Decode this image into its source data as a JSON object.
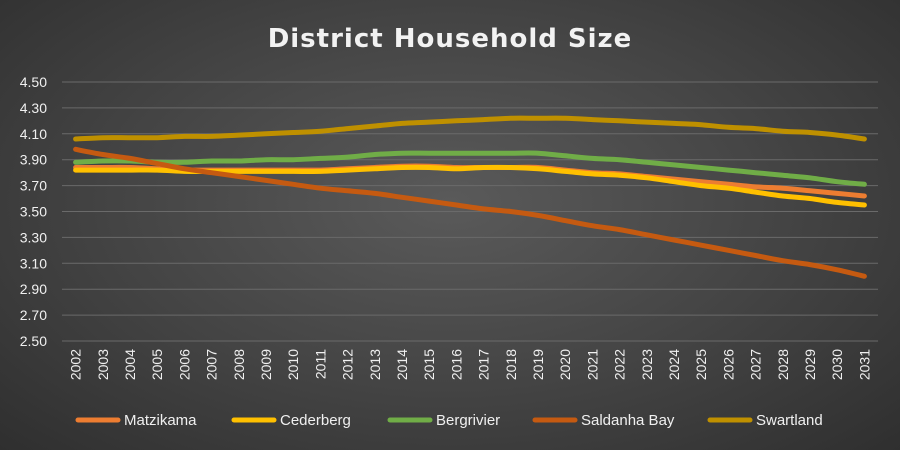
{
  "chart_data": {
    "type": "line",
    "title": "District Household Size",
    "xlabel": "",
    "ylabel": "",
    "ylim": [
      2.5,
      4.5
    ],
    "yticks": [
      "4.50",
      "4.30",
      "4.10",
      "3.90",
      "3.70",
      "3.50",
      "3.30",
      "3.10",
      "2.90",
      "2.70",
      "2.50"
    ],
    "grid": true,
    "legend_position": "bottom",
    "categories": [
      "2002",
      "2003",
      "2004",
      "2005",
      "2006",
      "2007",
      "2008",
      "2009",
      "2010",
      "2011",
      "2012",
      "2013",
      "2014",
      "2015",
      "2016",
      "2017",
      "2018",
      "2019",
      "2020",
      "2021",
      "2022",
      "2023",
      "2024",
      "2025",
      "2026",
      "2027",
      "2028",
      "2029",
      "2030",
      "2031"
    ],
    "series": [
      {
        "name": "Matzikama",
        "color": "#ED7D31",
        "values": [
          3.84,
          3.84,
          3.84,
          3.83,
          3.82,
          3.82,
          3.82,
          3.82,
          3.82,
          3.82,
          3.83,
          3.84,
          3.85,
          3.85,
          3.84,
          3.84,
          3.84,
          3.84,
          3.82,
          3.8,
          3.79,
          3.77,
          3.75,
          3.73,
          3.71,
          3.69,
          3.68,
          3.66,
          3.64,
          3.62
        ]
      },
      {
        "name": "Cederberg",
        "color": "#FFC000",
        "values": [
          3.82,
          3.82,
          3.82,
          3.82,
          3.81,
          3.81,
          3.81,
          3.81,
          3.81,
          3.81,
          3.82,
          3.83,
          3.84,
          3.84,
          3.83,
          3.84,
          3.84,
          3.83,
          3.81,
          3.79,
          3.78,
          3.76,
          3.73,
          3.7,
          3.68,
          3.65,
          3.62,
          3.6,
          3.57,
          3.55
        ]
      },
      {
        "name": "Bergrivier",
        "color": "#70AD47",
        "values": [
          3.88,
          3.89,
          3.89,
          3.88,
          3.88,
          3.89,
          3.89,
          3.9,
          3.9,
          3.91,
          3.92,
          3.94,
          3.95,
          3.95,
          3.95,
          3.95,
          3.95,
          3.95,
          3.93,
          3.91,
          3.9,
          3.88,
          3.86,
          3.84,
          3.82,
          3.8,
          3.78,
          3.76,
          3.73,
          3.71
        ]
      },
      {
        "name": "Saldanha Bay",
        "color": "#C55A11",
        "values": [
          3.98,
          3.94,
          3.91,
          3.87,
          3.83,
          3.8,
          3.77,
          3.74,
          3.71,
          3.68,
          3.66,
          3.64,
          3.61,
          3.58,
          3.55,
          3.52,
          3.5,
          3.47,
          3.43,
          3.39,
          3.36,
          3.32,
          3.28,
          3.24,
          3.2,
          3.16,
          3.12,
          3.09,
          3.05,
          3.0
        ]
      },
      {
        "name": "Swartland",
        "color": "#BF9000",
        "values": [
          4.06,
          4.07,
          4.07,
          4.07,
          4.08,
          4.08,
          4.09,
          4.1,
          4.11,
          4.12,
          4.14,
          4.16,
          4.18,
          4.19,
          4.2,
          4.21,
          4.22,
          4.22,
          4.22,
          4.21,
          4.2,
          4.19,
          4.18,
          4.17,
          4.15,
          4.14,
          4.12,
          4.11,
          4.09,
          4.06
        ]
      }
    ]
  }
}
